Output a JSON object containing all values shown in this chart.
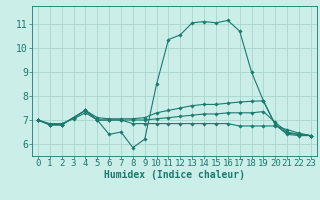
{
  "xlabel": "Humidex (Indice chaleur)",
  "xlim": [
    -0.5,
    23.5
  ],
  "ylim": [
    5.5,
    11.75
  ],
  "yticks": [
    6,
    7,
    8,
    9,
    10,
    11
  ],
  "xticks": [
    0,
    1,
    2,
    3,
    4,
    5,
    6,
    7,
    8,
    9,
    10,
    11,
    12,
    13,
    14,
    15,
    16,
    17,
    18,
    19,
    20,
    21,
    22,
    23
  ],
  "bg_color": "#cceee8",
  "line_color": "#1a7a6e",
  "grid_color": "#aad4cc",
  "series": [
    [
      7.0,
      6.8,
      6.8,
      7.1,
      7.4,
      7.0,
      6.4,
      6.5,
      5.85,
      6.2,
      8.5,
      10.35,
      10.55,
      11.05,
      11.1,
      11.05,
      11.15,
      10.7,
      9.0,
      7.8,
      6.8,
      6.4,
      6.35,
      6.35
    ],
    [
      7.0,
      6.8,
      6.8,
      7.1,
      7.4,
      7.0,
      7.0,
      7.0,
      6.85,
      6.85,
      6.85,
      6.85,
      6.85,
      6.85,
      6.85,
      6.85,
      6.85,
      6.75,
      6.75,
      6.75,
      6.75,
      6.6,
      6.45,
      6.35
    ],
    [
      7.0,
      6.8,
      6.8,
      7.1,
      7.4,
      7.1,
      7.05,
      7.05,
      7.05,
      7.1,
      7.3,
      7.4,
      7.5,
      7.6,
      7.65,
      7.65,
      7.7,
      7.75,
      7.78,
      7.8,
      6.8,
      6.45,
      6.4,
      6.35
    ],
    [
      7.0,
      6.85,
      6.85,
      7.05,
      7.3,
      7.0,
      7.0,
      7.0,
      7.0,
      7.0,
      7.05,
      7.1,
      7.15,
      7.2,
      7.25,
      7.25,
      7.3,
      7.3,
      7.3,
      7.35,
      6.9,
      6.5,
      6.4,
      6.35
    ]
  ],
  "tick_fontsize": 6.5,
  "label_fontsize": 7.0
}
